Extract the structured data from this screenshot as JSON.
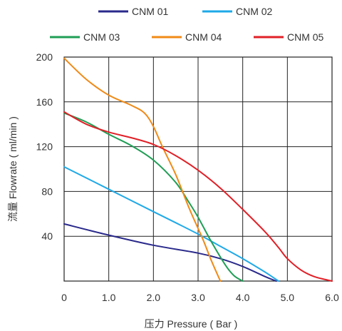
{
  "chart_data": {
    "type": "line",
    "title": "",
    "xlabel": "压力 Pressure ( Bar )",
    "ylabel": "流量 Flowrate ( ml/min )",
    "xlim": [
      0,
      6
    ],
    "ylim": [
      0,
      200
    ],
    "xticks": [
      "0",
      "1.0",
      "2.0",
      "3.0",
      "4.0",
      "5.0",
      "6.0"
    ],
    "yticks": [
      "40",
      "80",
      "120",
      "160",
      "200"
    ],
    "grid": true,
    "legend_position": "top",
    "series": [
      {
        "name": "CNM 01",
        "color": "#2a2a8c",
        "points": [
          [
            0,
            51
          ],
          [
            1,
            41
          ],
          [
            2,
            32
          ],
          [
            3,
            25
          ],
          [
            3.5,
            20
          ],
          [
            4,
            13
          ],
          [
            4.5,
            4
          ],
          [
            4.75,
            0
          ]
        ]
      },
      {
        "name": "CNM 02",
        "color": "#1ea9e8",
        "points": [
          [
            0,
            102
          ],
          [
            1,
            82
          ],
          [
            2,
            62
          ],
          [
            3,
            42
          ],
          [
            3.5,
            31
          ],
          [
            4,
            20
          ],
          [
            4.5,
            8
          ],
          [
            4.8,
            0
          ]
        ]
      },
      {
        "name": "CNM 03",
        "color": "#1f9e55",
        "points": [
          [
            0,
            150
          ],
          [
            0.5,
            142
          ],
          [
            1,
            131
          ],
          [
            1.5,
            121
          ],
          [
            2,
            108
          ],
          [
            2.5,
            88
          ],
          [
            2.8,
            70
          ],
          [
            3,
            57
          ],
          [
            3.3,
            35
          ],
          [
            3.6,
            15
          ],
          [
            3.8,
            5
          ],
          [
            4,
            0
          ]
        ]
      },
      {
        "name": "CNM 04",
        "color": "#f08a17",
        "points": [
          [
            0,
            199
          ],
          [
            0.5,
            180
          ],
          [
            1,
            166
          ],
          [
            1.5,
            157
          ],
          [
            1.8,
            150
          ],
          [
            2,
            138
          ],
          [
            2.2,
            120
          ],
          [
            2.5,
            95
          ],
          [
            2.8,
            65
          ],
          [
            3.1,
            38
          ],
          [
            3.3,
            18
          ],
          [
            3.5,
            0
          ]
        ]
      },
      {
        "name": "CNM 05",
        "color": "#e02027",
        "points": [
          [
            0,
            151
          ],
          [
            0.5,
            140
          ],
          [
            1,
            133
          ],
          [
            1.5,
            128
          ],
          [
            2,
            122
          ],
          [
            2.5,
            112
          ],
          [
            3,
            99
          ],
          [
            3.5,
            83
          ],
          [
            4,
            64
          ],
          [
            4.5,
            44
          ],
          [
            4.8,
            30
          ],
          [
            5,
            20
          ],
          [
            5.3,
            10
          ],
          [
            5.6,
            4
          ],
          [
            6,
            0
          ]
        ]
      }
    ]
  }
}
